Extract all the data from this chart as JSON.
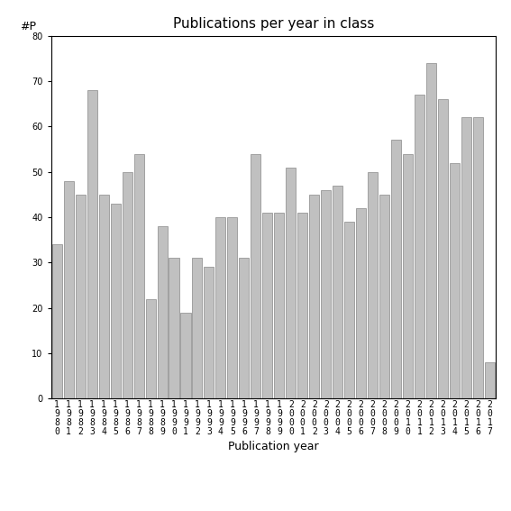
{
  "years": [
    "1980",
    "1981",
    "1982",
    "1983",
    "1984",
    "1985",
    "1986",
    "1987",
    "1988",
    "1989",
    "1990",
    "1991",
    "1992",
    "1993",
    "1994",
    "1995",
    "1996",
    "1997",
    "1998",
    "1999",
    "2000",
    "2001",
    "2002",
    "2003",
    "2004",
    "2005",
    "2006",
    "2007",
    "2008",
    "2009",
    "2010",
    "2011",
    "2012",
    "2013",
    "2014",
    "2015",
    "2016",
    "2017"
  ],
  "values": [
    34,
    48,
    45,
    68,
    45,
    43,
    50,
    54,
    22,
    38,
    31,
    19,
    31,
    29,
    40,
    40,
    31,
    54,
    41,
    41,
    51,
    41,
    45,
    46,
    47,
    39,
    42,
    50,
    45,
    57,
    54,
    67,
    74,
    66,
    52,
    62,
    62,
    8
  ],
  "bar_color": "#c0c0c0",
  "bar_edgecolor": "#888888",
  "title": "Publications per year in class",
  "xlabel": "Publication year",
  "ylabel": "#P",
  "ylim": [
    0,
    80
  ],
  "yticks": [
    0,
    10,
    20,
    30,
    40,
    50,
    60,
    70,
    80
  ],
  "title_fontsize": 11,
  "label_fontsize": 9,
  "tick_fontsize": 7,
  "bg_color": "#ffffff"
}
